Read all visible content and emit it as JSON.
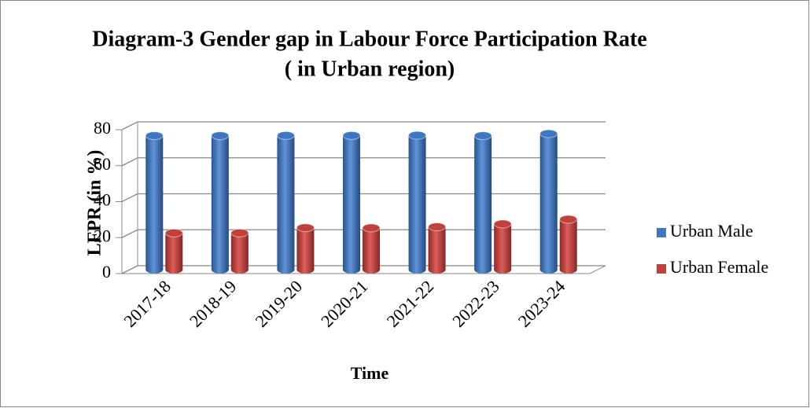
{
  "chart_data": {
    "type": "bar3d",
    "title": "Diagram-3 Gender gap in Labour Force Participation Rate",
    "subtitle": "( in Urban region)",
    "x_label": "Time",
    "y_label": "LFPR (in %)",
    "categories": [
      "2017-18",
      "2018-19",
      "2019-20",
      "2020-21",
      "2021-22",
      "2022-23",
      "2023-24"
    ],
    "series": [
      {
        "name": "Urban Male",
        "color": "#3f76c0",
        "values": [
          74.5,
          74.5,
          74.6,
          74.6,
          74.7,
          74.5,
          75.6
        ]
      },
      {
        "name": "Urban Female",
        "color": "#c0403c",
        "values": [
          20.4,
          20.4,
          23.3,
          23.2,
          23.8,
          25.4,
          28.0
        ]
      }
    ],
    "ylim": [
      0,
      80
    ],
    "yticks": [
      0,
      20,
      40,
      60,
      80
    ],
    "grid": true,
    "legend": "right"
  }
}
